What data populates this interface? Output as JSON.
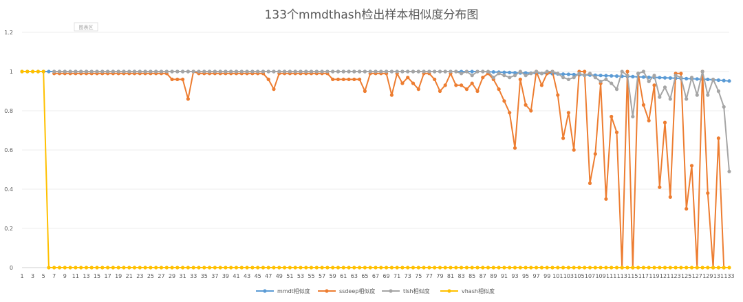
{
  "chart_data": {
    "type": "line",
    "title": "133个mmdthash检出样本相似度分布图",
    "plot_area_label": "图表区",
    "xlabel": "",
    "ylabel": "",
    "x": [
      1,
      2,
      3,
      4,
      5,
      6,
      7,
      8,
      9,
      10,
      11,
      12,
      13,
      14,
      15,
      16,
      17,
      18,
      19,
      20,
      21,
      22,
      23,
      24,
      25,
      26,
      27,
      28,
      29,
      30,
      31,
      32,
      33,
      34,
      35,
      36,
      37,
      38,
      39,
      40,
      41,
      42,
      43,
      44,
      45,
      46,
      47,
      48,
      49,
      50,
      51,
      52,
      53,
      54,
      55,
      56,
      57,
      58,
      59,
      60,
      61,
      62,
      63,
      64,
      65,
      66,
      67,
      68,
      69,
      70,
      71,
      72,
      73,
      74,
      75,
      76,
      77,
      78,
      79,
      80,
      81,
      82,
      83,
      84,
      85,
      86,
      87,
      88,
      89,
      90,
      91,
      92,
      93,
      94,
      95,
      96,
      97,
      98,
      99,
      100,
      101,
      102,
      103,
      104,
      105,
      106,
      107,
      108,
      109,
      110,
      111,
      112,
      113,
      114,
      115,
      116,
      117,
      118,
      119,
      120,
      121,
      122,
      123,
      124,
      125,
      126,
      127,
      128,
      129,
      130,
      131,
      132,
      133
    ],
    "xticks": [
      1,
      3,
      5,
      7,
      9,
      11,
      13,
      15,
      17,
      19,
      21,
      23,
      25,
      27,
      29,
      31,
      33,
      35,
      37,
      39,
      41,
      43,
      45,
      47,
      49,
      51,
      53,
      55,
      57,
      59,
      61,
      63,
      65,
      67,
      69,
      71,
      73,
      75,
      77,
      79,
      81,
      83,
      85,
      87,
      89,
      91,
      93,
      95,
      97,
      99,
      101,
      103,
      105,
      107,
      109,
      111,
      113,
      115,
      117,
      119,
      121,
      123,
      125,
      127,
      129,
      131,
      133
    ],
    "ylim": [
      0,
      1.2
    ],
    "yticks": [
      0,
      0.2,
      0.4,
      0.6,
      0.8,
      1,
      1.2
    ],
    "legend_position": "bottom",
    "series": [
      {
        "name": "mmdt相似度",
        "color": "#5b9bd5",
        "values": [
          1,
          1,
          1,
          1,
          1,
          1,
          1,
          1,
          1,
          1,
          1,
          1,
          1,
          1,
          1,
          1,
          1,
          1,
          1,
          1,
          1,
          1,
          1,
          1,
          1,
          1,
          1,
          1,
          1,
          1,
          1,
          1,
          1,
          1,
          1,
          1,
          1,
          1,
          1,
          1,
          1,
          1,
          1,
          1,
          1,
          1,
          1,
          1,
          1,
          1,
          1,
          1,
          1,
          1,
          1,
          1,
          1,
          1,
          1,
          1,
          1,
          1,
          1,
          1,
          1,
          1,
          1,
          1,
          1,
          1,
          1,
          1,
          1,
          1,
          1,
          1,
          1,
          1,
          1,
          1,
          1,
          1,
          1,
          1,
          1,
          1,
          1,
          0.999,
          0.998,
          0.997,
          0.996,
          0.995,
          0.994,
          0.993,
          0.993,
          0.992,
          0.991,
          0.99,
          0.99,
          0.989,
          0.988,
          0.987,
          0.986,
          0.985,
          0.984,
          0.983,
          0.982,
          0.981,
          0.98,
          0.979,
          0.978,
          0.977,
          0.976,
          0.975,
          0.974,
          0.973,
          0.972,
          0.971,
          0.97,
          0.969,
          0.968,
          0.967,
          0.966,
          0.965,
          0.964,
          0.963,
          0.962,
          0.961,
          0.96,
          0.958,
          0.956,
          0.954,
          0.952
        ]
      },
      {
        "name": "ssdeep相似度",
        "color": "#ed7d31",
        "values": [
          null,
          null,
          null,
          null,
          null,
          null,
          0.99,
          0.99,
          0.99,
          0.99,
          0.99,
          0.99,
          0.99,
          0.99,
          0.99,
          0.99,
          0.99,
          0.99,
          0.99,
          0.99,
          0.99,
          0.99,
          0.99,
          0.99,
          0.99,
          0.99,
          0.99,
          0.99,
          0.96,
          0.96,
          0.96,
          0.86,
          1,
          0.99,
          0.99,
          0.99,
          0.99,
          0.99,
          0.99,
          0.99,
          0.99,
          0.99,
          0.99,
          0.99,
          0.99,
          0.99,
          0.96,
          0.91,
          0.99,
          0.99,
          0.99,
          0.99,
          0.99,
          0.99,
          0.99,
          0.99,
          0.99,
          0.99,
          0.96,
          0.96,
          0.96,
          0.96,
          0.96,
          0.96,
          0.9,
          0.99,
          0.99,
          0.99,
          0.99,
          0.88,
          0.99,
          0.94,
          0.97,
          0.94,
          0.91,
          0.99,
          0.99,
          0.96,
          0.9,
          0.93,
          0.99,
          0.93,
          0.93,
          0.91,
          0.94,
          0.9,
          0.97,
          0.99,
          0.96,
          0.91,
          0.85,
          0.79,
          0.61,
          0.96,
          0.83,
          0.8,
          1,
          0.93,
          0.99,
          1,
          0.88,
          0.66,
          0.79,
          0.6,
          1,
          1,
          0.43,
          0.58,
          0.94,
          0.35,
          0.77,
          0.69,
          0.0,
          1,
          0.0,
          0.99,
          0.83,
          0.75,
          0.93,
          0.41,
          0.74,
          0.36,
          0.99,
          0.99,
          0.3,
          0.52,
          0.0,
          1,
          0.38,
          0.0,
          0.66,
          0.0,
          null
        ]
      },
      {
        "name": "tlsh相似度",
        "color": "#a5a5a5",
        "values": [
          null,
          null,
          null,
          null,
          null,
          null,
          1,
          1,
          1,
          1,
          1,
          1,
          1,
          1,
          1,
          1,
          1,
          1,
          1,
          1,
          1,
          1,
          1,
          1,
          1,
          1,
          1,
          1,
          1,
          1,
          1,
          1,
          1,
          1,
          1,
          1,
          1,
          1,
          1,
          1,
          1,
          1,
          1,
          1,
          1,
          1,
          1,
          1,
          1,
          1,
          1,
          1,
          1,
          1,
          1,
          1,
          1,
          1,
          1,
          1,
          1,
          1,
          1,
          1,
          1,
          1,
          1,
          1,
          1,
          1,
          1,
          1,
          1,
          1,
          1,
          1,
          1,
          1,
          1,
          1,
          1,
          1,
          0.99,
          1,
          0.98,
          1,
          1,
          1,
          0.97,
          0.99,
          0.98,
          0.97,
          0.98,
          1,
          0.98,
          0.99,
          1,
          0.99,
          1,
          1,
          0.99,
          0.97,
          0.96,
          0.97,
          0.99,
          0.98,
          0.99,
          0.97,
          0.95,
          0.96,
          0.94,
          0.91,
          1,
          0.98,
          0.77,
          0.99,
          1,
          0.95,
          0.98,
          0.87,
          0.92,
          0.86,
          0.98,
          0.97,
          0.86,
          0.97,
          0.88,
          1,
          0.88,
          0.96,
          0.9,
          0.82,
          0.49
        ]
      },
      {
        "name": "vhash相似度",
        "color": "#ffc000",
        "values": [
          1,
          1,
          1,
          1,
          1,
          0,
          0,
          0,
          0,
          0,
          0,
          0,
          0,
          0,
          0,
          0,
          0,
          0,
          0,
          0,
          0,
          0,
          0,
          0,
          0,
          0,
          0,
          0,
          0,
          0,
          0,
          0,
          0,
          0,
          0,
          0,
          0,
          0,
          0,
          0,
          0,
          0,
          0,
          0,
          0,
          0,
          0,
          0,
          0,
          0,
          0,
          0,
          0,
          0,
          0,
          0,
          0,
          0,
          0,
          0,
          0,
          0,
          0,
          0,
          0,
          0,
          0,
          0,
          0,
          0,
          0,
          0,
          0,
          0,
          0,
          0,
          0,
          0,
          0,
          0,
          0,
          0,
          0,
          0,
          0,
          0,
          0,
          0,
          0,
          0,
          0,
          0,
          0,
          0,
          0,
          0,
          0,
          0,
          0,
          0,
          0,
          0,
          0,
          0,
          0,
          0,
          0,
          0,
          0,
          0,
          0,
          0,
          0,
          0,
          0,
          0,
          0,
          0,
          0,
          0,
          0,
          0,
          0,
          0,
          0,
          0,
          0,
          0,
          0,
          0,
          0,
          0,
          0
        ]
      }
    ]
  }
}
